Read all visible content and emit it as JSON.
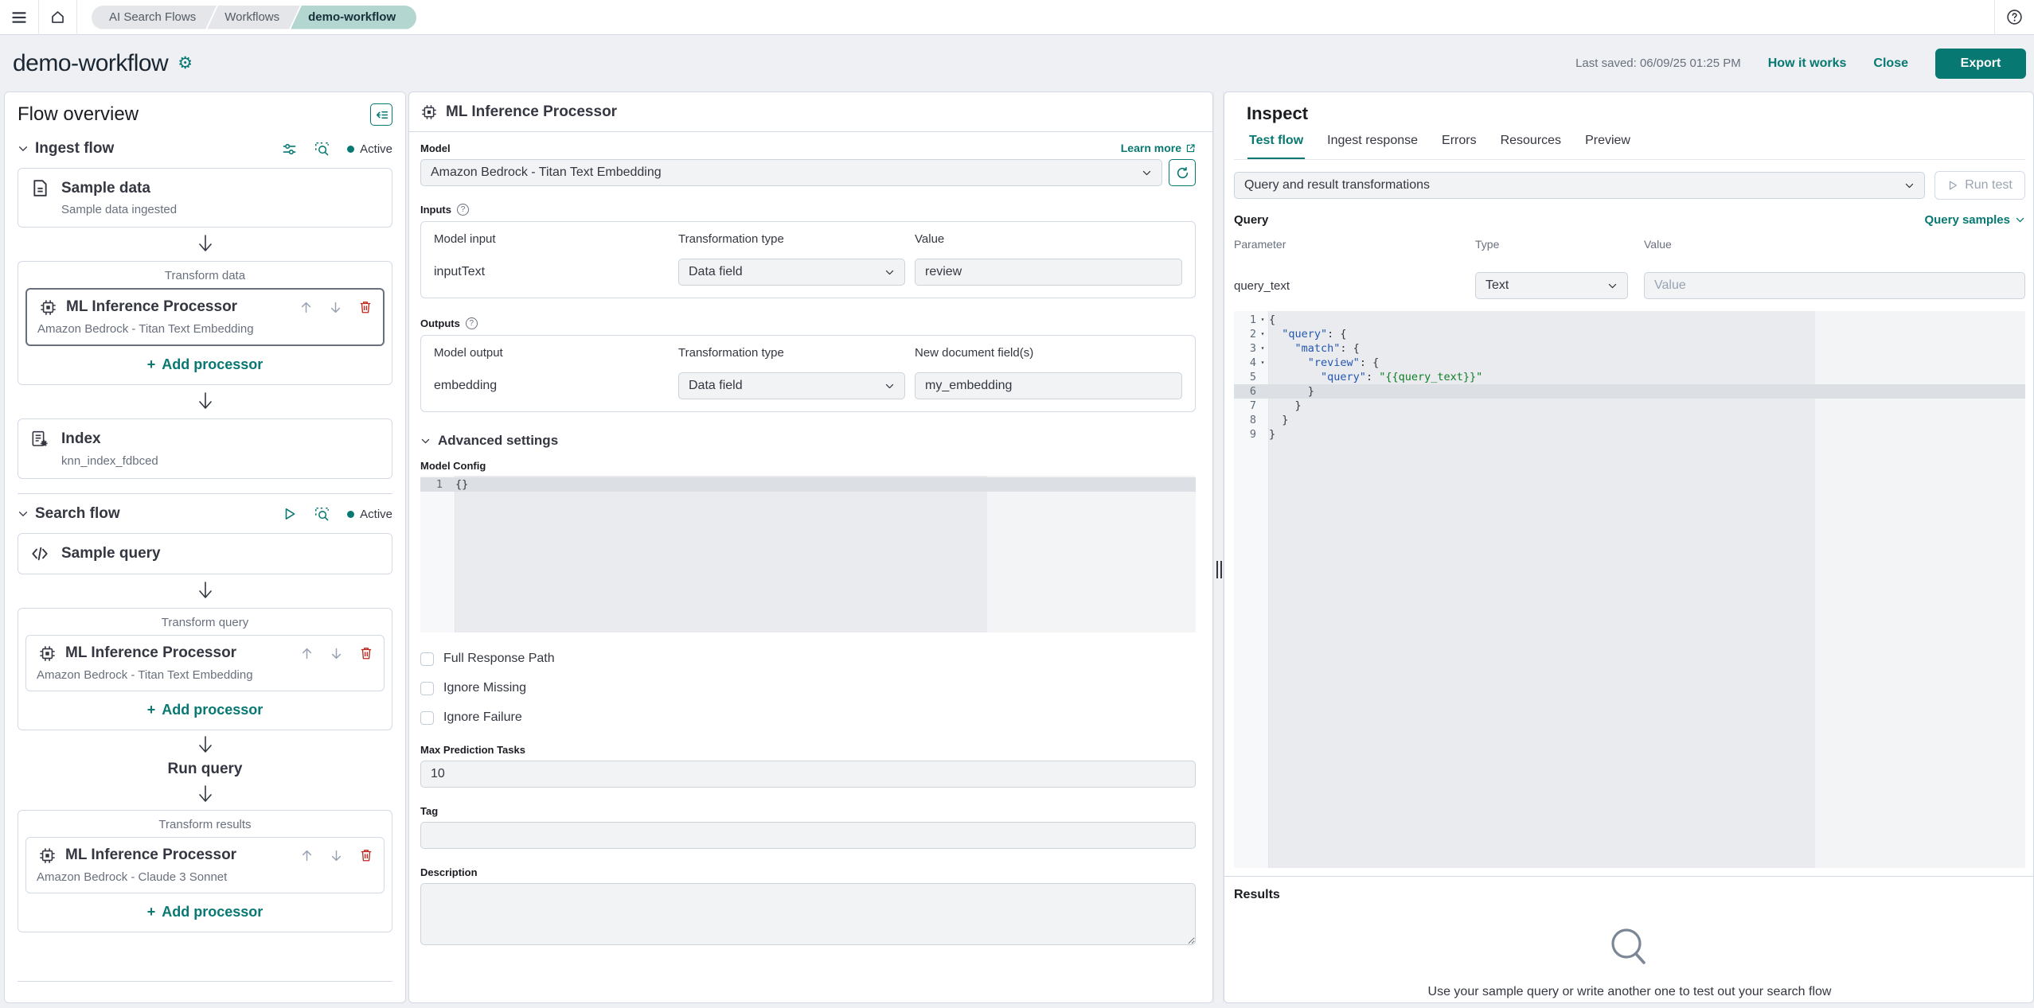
{
  "colors": {
    "accent": "#077872",
    "danger": "#bd271e",
    "selected_border": "#69707d"
  },
  "topbar": {
    "breadcrumbs": [
      "AI Search Flows",
      "Workflows",
      "demo-workflow"
    ]
  },
  "header": {
    "title": "demo-workflow",
    "last_saved": "Last saved: 06/09/25 01:25 PM",
    "how_it_works": "How it works",
    "close": "Close",
    "export": "Export"
  },
  "flow_overview": {
    "title": "Flow overview",
    "ingest": {
      "title": "Ingest flow",
      "status": "Active",
      "sample_data": {
        "title": "Sample data",
        "subtitle": "Sample data ingested"
      },
      "transform_data": {
        "label": "Transform data",
        "processor": {
          "title": "ML Inference Processor",
          "subtitle": "Amazon Bedrock - Titan Text Embedding"
        },
        "add_processor": "Add processor"
      },
      "index": {
        "title": "Index",
        "subtitle": "knn_index_fdbced"
      }
    },
    "search": {
      "title": "Search flow",
      "status": "Active",
      "sample_query": {
        "title": "Sample query"
      },
      "transform_query": {
        "label": "Transform query",
        "processor": {
          "title": "ML Inference Processor",
          "subtitle": "Amazon Bedrock - Titan Text Embedding"
        },
        "add_processor": "Add processor"
      },
      "run_query": "Run query",
      "transform_results": {
        "label": "Transform results",
        "processor": {
          "title": "ML Inference Processor",
          "subtitle": "Amazon Bedrock - Claude 3 Sonnet"
        },
        "add_processor": "Add processor"
      }
    }
  },
  "processor_panel": {
    "title": "ML Inference Processor",
    "model": {
      "label": "Model",
      "learn_more": "Learn more",
      "value": "Amazon Bedrock - Titan Text Embedding"
    },
    "inputs": {
      "label": "Inputs",
      "headers": [
        "Model input",
        "Transformation type",
        "Value"
      ],
      "row": {
        "model_input": "inputText",
        "transformation_type": "Data field",
        "value": "review"
      }
    },
    "outputs": {
      "label": "Outputs",
      "headers": [
        "Model output",
        "Transformation type",
        "New document field(s)"
      ],
      "row": {
        "model_output": "embedding",
        "transformation_type": "Data field",
        "value": "my_embedding"
      }
    },
    "advanced": {
      "title": "Advanced settings",
      "model_config": {
        "label": "Model Config",
        "lines": [
          {
            "n": "1",
            "active": true,
            "segs": [
              {
                "t": "{}",
                "c": "p"
              }
            ]
          }
        ]
      },
      "checkboxes": [
        "Full Response Path",
        "Ignore Missing",
        "Ignore Failure"
      ],
      "max_prediction_tasks": {
        "label": "Max Prediction Tasks",
        "value": "10"
      },
      "tag": {
        "label": "Tag",
        "value": ""
      },
      "description": {
        "label": "Description",
        "value": ""
      }
    }
  },
  "inspect_panel": {
    "title": "Inspect",
    "tabs": [
      "Test flow",
      "Ingest response",
      "Errors",
      "Resources",
      "Preview"
    ],
    "transform_select": "Query and result transformations",
    "run_test": "Run test",
    "query": {
      "label": "Query",
      "samples_link": "Query samples",
      "headers": [
        "Parameter",
        "Type",
        "Value"
      ],
      "row": {
        "parameter": "query_text",
        "type": "Text",
        "value_placeholder": "Value"
      }
    },
    "code_lines": [
      {
        "n": "1",
        "fold": true,
        "segs": [
          {
            "t": "{",
            "c": "p"
          }
        ]
      },
      {
        "n": "2",
        "fold": true,
        "segs": [
          {
            "t": "  ",
            "c": "p"
          },
          {
            "t": "\"query\"",
            "c": "k"
          },
          {
            "t": ": {",
            "c": "p"
          }
        ]
      },
      {
        "n": "3",
        "fold": true,
        "segs": [
          {
            "t": "    ",
            "c": "p"
          },
          {
            "t": "\"match\"",
            "c": "k"
          },
          {
            "t": ": {",
            "c": "p"
          }
        ]
      },
      {
        "n": "4",
        "fold": true,
        "segs": [
          {
            "t": "      ",
            "c": "p"
          },
          {
            "t": "\"review\"",
            "c": "k"
          },
          {
            "t": ": {",
            "c": "p"
          }
        ]
      },
      {
        "n": "5",
        "segs": [
          {
            "t": "        ",
            "c": "p"
          },
          {
            "t": "\"query\"",
            "c": "k"
          },
          {
            "t": ": ",
            "c": "p"
          },
          {
            "t": "\"{{query_text}}\"",
            "c": "s"
          }
        ]
      },
      {
        "n": "6",
        "active": true,
        "segs": [
          {
            "t": "      }",
            "c": "p"
          }
        ]
      },
      {
        "n": "7",
        "segs": [
          {
            "t": "    }",
            "c": "p"
          }
        ]
      },
      {
        "n": "8",
        "segs": [
          {
            "t": "  }",
            "c": "p"
          }
        ]
      },
      {
        "n": "9",
        "segs": [
          {
            "t": "}",
            "c": "p"
          }
        ]
      }
    ],
    "results": {
      "label": "Results",
      "empty_message": "Use your sample query or write another one to test out your search flow"
    }
  }
}
